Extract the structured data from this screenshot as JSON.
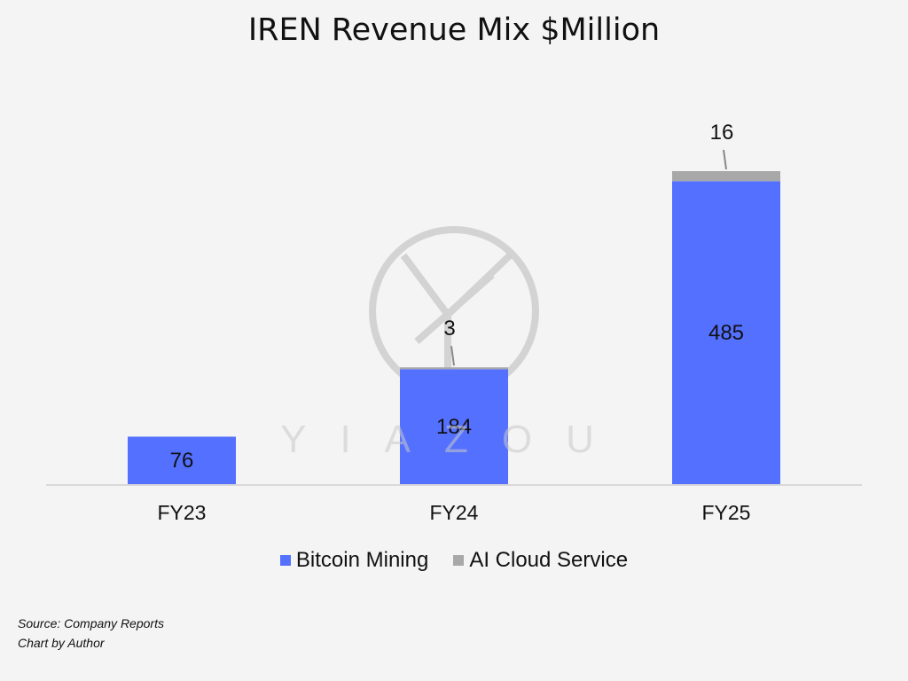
{
  "chart_data": {
    "type": "bar",
    "stacked": true,
    "title": "IREN Revenue Mix $Million",
    "categories": [
      "FY23",
      "FY24",
      "FY25"
    ],
    "series": [
      {
        "name": "Bitcoin Mining",
        "values": [
          76,
          184,
          485
        ],
        "color": "#5470ff"
      },
      {
        "name": "AI Cloud Service",
        "values": [
          0,
          3,
          16
        ],
        "color": "#a8a8a8"
      }
    ],
    "data_labels": {
      "bitcoin": [
        "76",
        "184",
        "485"
      ],
      "ai": [
        "",
        "3",
        "16"
      ]
    },
    "xlabel": "",
    "ylabel": "",
    "ylim": [
      0,
      501
    ],
    "grid": false,
    "legend": "bottom"
  },
  "watermark": {
    "text": "YIAZOU"
  },
  "footnotes": {
    "source": "Source: Company Reports",
    "credit": "Chart by Author"
  }
}
